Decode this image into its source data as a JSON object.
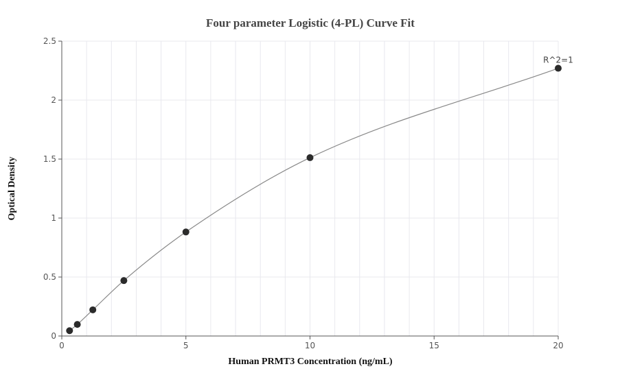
{
  "chart_data": {
    "type": "scatter",
    "title": "Four parameter Logistic (4-PL) Curve Fit",
    "xlabel": "Human PRMT3 Concentration (ng/mL)",
    "ylabel": "Optical Density",
    "xlim": [
      0,
      20
    ],
    "ylim": [
      0,
      2.5
    ],
    "x_ticks": [
      0,
      5,
      10,
      15,
      20
    ],
    "y_ticks": [
      0,
      0.5,
      1,
      1.5,
      2,
      2.5
    ],
    "x_tick_labels": [
      "0",
      "5",
      "10",
      "15",
      "20"
    ],
    "y_tick_labels": [
      "0",
      "0.5",
      "1",
      "1.5",
      "2",
      "2.5"
    ],
    "grid": true,
    "series": [
      {
        "x": [
          0.3125,
          0.625,
          1.25,
          2.5,
          5,
          10,
          20
        ],
        "y": [
          0.045,
          0.098,
          0.222,
          0.47,
          0.882,
          1.512,
          2.27
        ]
      }
    ],
    "annotation": "R^2=1",
    "colors": {
      "points": "#2b2b2b",
      "curve": "#888888",
      "grid": "#e8e8ee",
      "axis": "#555555"
    }
  }
}
